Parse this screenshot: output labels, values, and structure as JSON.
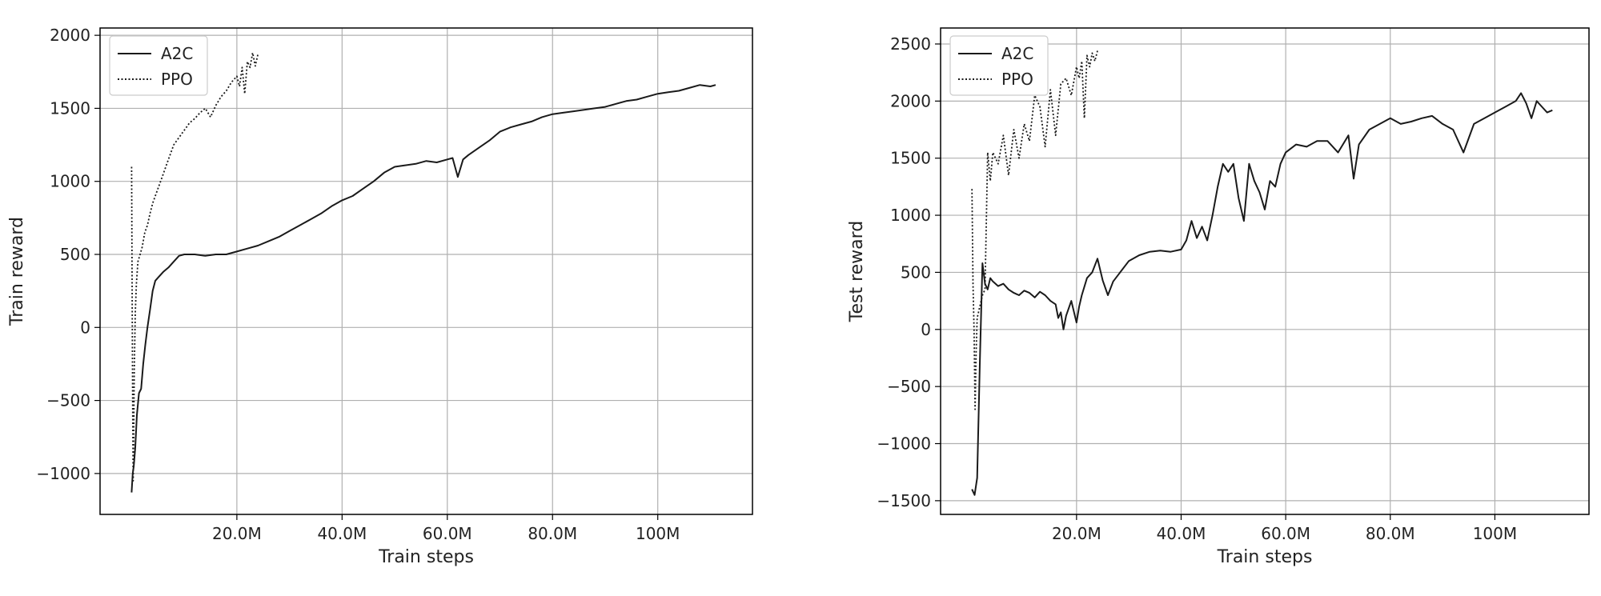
{
  "figure": {
    "colors": {
      "line": "#1a1a1a",
      "grid": "#b0b0b0",
      "frame": "#000000",
      "background": "#ffffff"
    }
  },
  "chart_data": [
    {
      "type": "line",
      "title": "",
      "xlabel": "Train steps",
      "ylabel": "Train reward",
      "xlim": [
        -6000000,
        118000000
      ],
      "ylim": [
        -1280,
        2050
      ],
      "xticks": [
        20000000,
        40000000,
        60000000,
        80000000,
        100000000
      ],
      "xtick_labels": [
        "20.0M",
        "40.0M",
        "60.0M",
        "80.0M",
        "100M"
      ],
      "yticks": [
        -1000,
        -500,
        0,
        500,
        1000,
        1500,
        2000
      ],
      "ytick_labels": [
        "−1000",
        "−500",
        "0",
        "500",
        "1000",
        "1500",
        "2000"
      ],
      "grid": true,
      "legend": "top-left",
      "series": [
        {
          "name": "A2C",
          "style": "solid",
          "x": [
            0,
            200000,
            400000,
            700000,
            1000000,
            1400000,
            1800000,
            2200000,
            2600000,
            3000000,
            3500000,
            4000000,
            4500000,
            5000000,
            6000000,
            7000000,
            8000000,
            9000000,
            10000000,
            12000000,
            14000000,
            16000000,
            18000000,
            20000000,
            22000000,
            24000000,
            26000000,
            28000000,
            30000000,
            32000000,
            34000000,
            36000000,
            38000000,
            40000000,
            42000000,
            44000000,
            46000000,
            48000000,
            50000000,
            52000000,
            54000000,
            56000000,
            58000000,
            60000000,
            61000000,
            62000000,
            63000000,
            64000000,
            66000000,
            68000000,
            70000000,
            72000000,
            74000000,
            76000000,
            78000000,
            80000000,
            82000000,
            84000000,
            86000000,
            88000000,
            90000000,
            92000000,
            94000000,
            96000000,
            98000000,
            100000000,
            102000000,
            104000000,
            106000000,
            108000000,
            110000000,
            111000000
          ],
          "y": [
            -1130,
            -1000,
            -950,
            -820,
            -600,
            -450,
            -420,
            -250,
            -120,
            0,
            120,
            250,
            320,
            340,
            380,
            410,
            450,
            490,
            500,
            500,
            490,
            500,
            500,
            520,
            540,
            560,
            590,
            620,
            660,
            700,
            740,
            780,
            830,
            870,
            900,
            950,
            1000,
            1060,
            1100,
            1110,
            1120,
            1140,
            1130,
            1150,
            1160,
            1030,
            1150,
            1180,
            1230,
            1280,
            1340,
            1370,
            1390,
            1410,
            1440,
            1460,
            1470,
            1480,
            1490,
            1500,
            1510,
            1530,
            1550,
            1560,
            1580,
            1600,
            1610,
            1620,
            1640,
            1660,
            1650,
            1660
          ]
        },
        {
          "name": "PPO",
          "style": "dotted",
          "x": [
            0,
            100000,
            200000,
            300000,
            400000,
            500000,
            700000,
            900000,
            1200000,
            1600000,
            2000000,
            2500000,
            3000000,
            3500000,
            4000000,
            5000000,
            6000000,
            7000000,
            8000000,
            9000000,
            10000000,
            11000000,
            12000000,
            13000000,
            14000000,
            15000000,
            16000000,
            17000000,
            18000000,
            19000000,
            20000000,
            20500000,
            21000000,
            21500000,
            22000000,
            22500000,
            23000000,
            23500000,
            24000000
          ],
          "y": [
            1100,
            200,
            -600,
            -1050,
            -700,
            -300,
            100,
            300,
            450,
            500,
            550,
            650,
            700,
            780,
            850,
            950,
            1050,
            1150,
            1250,
            1300,
            1350,
            1400,
            1430,
            1470,
            1500,
            1440,
            1520,
            1580,
            1620,
            1680,
            1720,
            1650,
            1780,
            1600,
            1820,
            1780,
            1880,
            1790,
            1870
          ]
        }
      ]
    },
    {
      "type": "line",
      "title": "",
      "xlabel": "Train steps",
      "ylabel": "Test reward",
      "xlim": [
        -6000000,
        118000000
      ],
      "ylim": [
        -1620,
        2640
      ],
      "xticks": [
        20000000,
        40000000,
        60000000,
        80000000,
        100000000
      ],
      "xtick_labels": [
        "20.0M",
        "40.0M",
        "60.0M",
        "80.0M",
        "100M"
      ],
      "yticks": [
        -1500,
        -1000,
        -500,
        0,
        500,
        1000,
        1500,
        2000,
        2500
      ],
      "ytick_labels": [
        "−1500",
        "−1000",
        "−500",
        "0",
        "500",
        "1000",
        "1500",
        "2000",
        "2500"
      ],
      "grid": true,
      "legend": "top-left",
      "series": [
        {
          "name": "A2C",
          "style": "solid",
          "x": [
            0,
            500000,
            1000000,
            1500000,
            2000000,
            2500000,
            3000000,
            3500000,
            4000000,
            5000000,
            6000000,
            7000000,
            8000000,
            9000000,
            10000000,
            11000000,
            12000000,
            13000000,
            14000000,
            15000000,
            16000000,
            16500000,
            17000000,
            17500000,
            18000000,
            19000000,
            20000000,
            20500000,
            21000000,
            22000000,
            23000000,
            24000000,
            25000000,
            26000000,
            27000000,
            28000000,
            30000000,
            32000000,
            34000000,
            36000000,
            38000000,
            40000000,
            41000000,
            42000000,
            43000000,
            44000000,
            45000000,
            46000000,
            47000000,
            48000000,
            49000000,
            50000000,
            51000000,
            52000000,
            53000000,
            54000000,
            55000000,
            56000000,
            57000000,
            58000000,
            59000000,
            60000000,
            62000000,
            64000000,
            66000000,
            68000000,
            70000000,
            72000000,
            73000000,
            74000000,
            76000000,
            78000000,
            80000000,
            82000000,
            84000000,
            86000000,
            88000000,
            90000000,
            92000000,
            94000000,
            96000000,
            98000000,
            100000000,
            102000000,
            104000000,
            105000000,
            106000000,
            107000000,
            108000000,
            109000000,
            110000000,
            111000000
          ],
          "y": [
            -1400,
            -1450,
            -1300,
            -300,
            580,
            400,
            350,
            450,
            420,
            380,
            400,
            350,
            320,
            300,
            340,
            320,
            280,
            330,
            300,
            250,
            220,
            100,
            150,
            0,
            120,
            250,
            60,
            200,
            300,
            450,
            500,
            620,
            430,
            300,
            420,
            480,
            600,
            650,
            680,
            690,
            680,
            700,
            780,
            950,
            800,
            900,
            780,
            1000,
            1250,
            1450,
            1380,
            1450,
            1150,
            950,
            1450,
            1300,
            1200,
            1050,
            1300,
            1250,
            1450,
            1550,
            1620,
            1600,
            1650,
            1650,
            1550,
            1700,
            1320,
            1620,
            1750,
            1800,
            1850,
            1800,
            1820,
            1850,
            1870,
            1800,
            1750,
            1550,
            1800,
            1850,
            1900,
            1950,
            2000,
            2070,
            1980,
            1850,
            2000,
            1950,
            1900,
            1920
          ]
        },
        {
          "name": "PPO",
          "style": "dotted",
          "x": [
            0,
            200000,
            400000,
            600000,
            800000,
            1000000,
            1500000,
            2000000,
            2500000,
            3000000,
            3500000,
            4000000,
            5000000,
            6000000,
            7000000,
            8000000,
            9000000,
            10000000,
            11000000,
            12000000,
            13000000,
            14000000,
            15000000,
            16000000,
            17000000,
            18000000,
            19000000,
            20000000,
            20500000,
            21000000,
            21500000,
            22000000,
            22500000,
            23000000,
            23500000,
            24000000
          ],
          "y": [
            1230,
            400,
            0,
            -700,
            -200,
            100,
            200,
            300,
            350,
            1550,
            1300,
            1550,
            1450,
            1700,
            1350,
            1750,
            1500,
            1800,
            1650,
            2050,
            1950,
            1600,
            2100,
            1700,
            2150,
            2200,
            2050,
            2300,
            2200,
            2350,
            1850,
            2400,
            2300,
            2420,
            2350,
            2440
          ]
        }
      ]
    }
  ]
}
